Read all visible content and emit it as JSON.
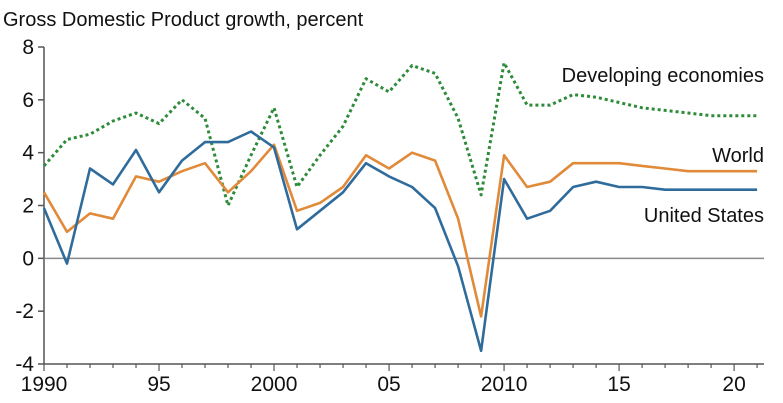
{
  "chart_data": {
    "type": "line",
    "title": "Gross Domestic Product growth, percent",
    "xlabel": "",
    "ylabel": "",
    "xlim": [
      1990,
      2021.3
    ],
    "ylim": [
      -4,
      8
    ],
    "x_ticks": [
      1990,
      1995,
      2000,
      2005,
      2010,
      2015,
      2020
    ],
    "x_tick_labels": [
      "1990",
      "95",
      "2000",
      "05",
      "2010",
      "15",
      "20"
    ],
    "y_ticks": [
      -4,
      -2,
      0,
      2,
      4,
      6,
      8
    ],
    "y_tick_labels": [
      "-4",
      "-2",
      "0",
      "2",
      "4",
      "6",
      "8"
    ],
    "zero_line": true,
    "grid": false,
    "legend": "inline labels at right",
    "x": [
      1990,
      1991,
      1992,
      1993,
      1994,
      1995,
      1996,
      1997,
      1998,
      1999,
      2000,
      2001,
      2002,
      2003,
      2004,
      2005,
      2006,
      2007,
      2008,
      2009,
      2010,
      2011,
      2012,
      2013,
      2014,
      2015,
      2016,
      2017,
      2018,
      2019,
      2020,
      2021
    ],
    "series": [
      {
        "name": "Developing economies",
        "color": "#2e8b3a",
        "style": "dotted",
        "values": [
          3.5,
          4.5,
          4.7,
          5.2,
          5.5,
          5.1,
          6.0,
          5.3,
          2.0,
          3.9,
          5.7,
          2.7,
          3.9,
          5.0,
          6.8,
          6.3,
          7.3,
          7.0,
          5.3,
          2.4,
          7.4,
          5.8,
          5.8,
          6.2,
          6.1,
          5.9,
          5.7,
          5.6,
          5.5,
          5.4,
          5.4,
          5.4
        ]
      },
      {
        "name": "World",
        "color": "#e08a3a",
        "style": "solid",
        "values": [
          2.5,
          1.0,
          1.7,
          1.5,
          3.1,
          2.9,
          3.3,
          3.6,
          2.5,
          3.3,
          4.3,
          1.8,
          2.1,
          2.7,
          3.9,
          3.4,
          4.0,
          3.7,
          1.5,
          -2.2,
          3.9,
          2.7,
          2.9,
          3.6,
          3.6,
          3.6,
          3.5,
          3.4,
          3.3,
          3.3,
          3.3,
          3.3
        ]
      },
      {
        "name": "United States",
        "color": "#2f6c9c",
        "style": "solid",
        "values": [
          1.9,
          -0.2,
          3.4,
          2.8,
          4.1,
          2.5,
          3.7,
          4.4,
          4.4,
          4.8,
          4.2,
          1.1,
          1.8,
          2.5,
          3.6,
          3.1,
          2.7,
          1.9,
          -0.3,
          -3.5,
          3.0,
          1.5,
          1.8,
          2.7,
          2.9,
          2.7,
          2.7,
          2.6,
          2.6,
          2.6,
          2.6,
          2.6
        ]
      }
    ]
  }
}
